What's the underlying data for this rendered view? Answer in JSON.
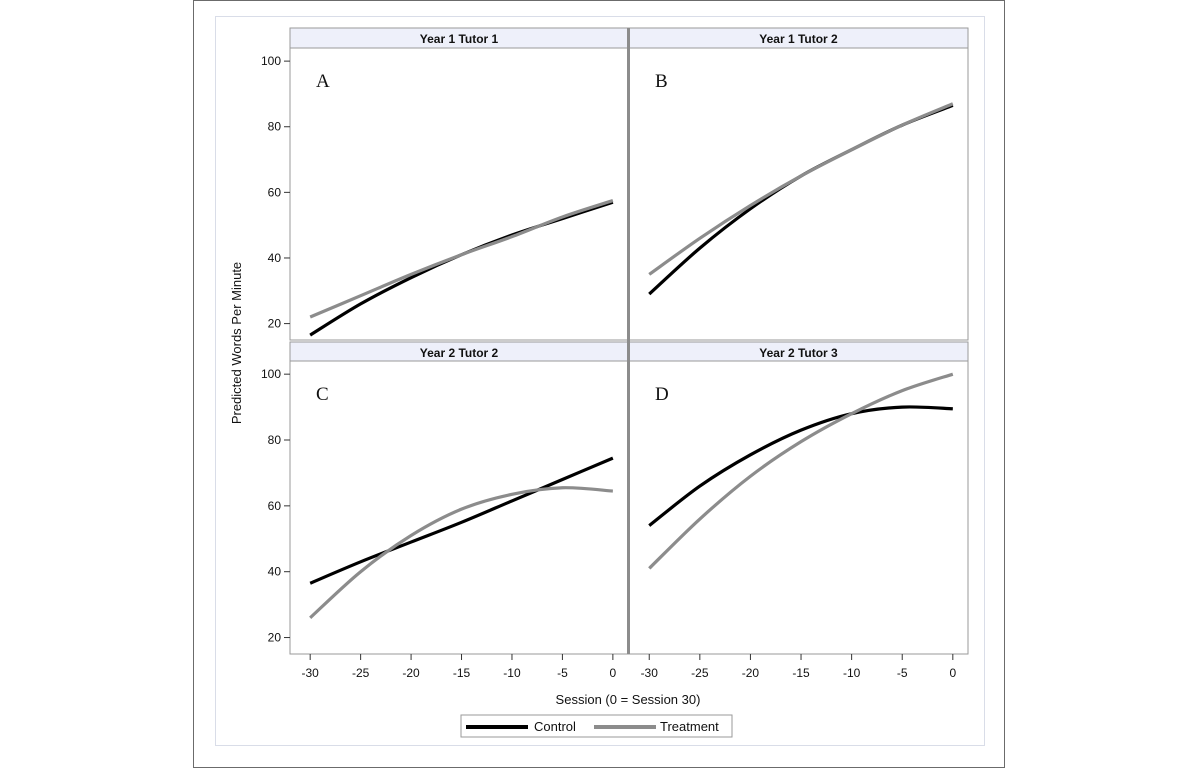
{
  "chart_data": {
    "type": "line",
    "xlabel": "Session (0 = Session 30)",
    "ylabel": "Predicted Words Per Minute",
    "xlim": [
      -32,
      1.5
    ],
    "xticks": [
      -30,
      -25,
      -20,
      -15,
      -10,
      -5,
      0
    ],
    "xtick_labels": [
      "-30",
      "-25",
      "-20",
      "-15",
      "-10",
      "-5",
      "0"
    ],
    "ylim": [
      15,
      104
    ],
    "yticks": [
      20,
      40,
      60,
      80,
      100
    ],
    "ytick_labels": [
      "20",
      "40",
      "60",
      "80",
      "100"
    ],
    "grid": false,
    "legend": {
      "placement": "bottom-center",
      "entries": [
        {
          "name": "Control",
          "color": "#000000"
        },
        {
          "name": "Treatment",
          "color": "#8c8c8c"
        }
      ]
    },
    "panels": [
      {
        "strip": "Year 1 Tutor 1",
        "letter": "A",
        "series": [
          {
            "name": "Control",
            "color": "#000000",
            "x": [
              -30,
              -25,
              -20,
              -15,
              -10,
              -5,
              0
            ],
            "y": [
              16.5,
              26,
              34,
              41,
              47,
              52,
              57
            ]
          },
          {
            "name": "Treatment",
            "color": "#8c8c8c",
            "x": [
              -30,
              -25,
              -20,
              -15,
              -10,
              -5,
              0
            ],
            "y": [
              22,
              28.5,
              35,
              41,
              46.5,
              52.5,
              57.5
            ]
          }
        ]
      },
      {
        "strip": "Year 1 Tutor 2",
        "letter": "B",
        "series": [
          {
            "name": "Control",
            "color": "#000000",
            "x": [
              -30,
              -25,
              -20,
              -15,
              -10,
              -5,
              0
            ],
            "y": [
              29,
              43,
              55,
              65,
              73,
              80.5,
              86.5
            ]
          },
          {
            "name": "Treatment",
            "color": "#8c8c8c",
            "x": [
              -30,
              -25,
              -20,
              -15,
              -10,
              -5,
              0
            ],
            "y": [
              35,
              46,
              56,
              65,
              73,
              80.5,
              87
            ]
          }
        ]
      },
      {
        "strip": "Year 2 Tutor 2",
        "letter": "C",
        "series": [
          {
            "name": "Control",
            "color": "#000000",
            "x": [
              -30,
              -25,
              -20,
              -15,
              -10,
              -5,
              0
            ],
            "y": [
              36.5,
              43,
              49,
              55,
              61.5,
              68,
              74.5
            ]
          },
          {
            "name": "Treatment",
            "color": "#8c8c8c",
            "x": [
              -30,
              -25,
              -20,
              -15,
              -10,
              -5,
              0
            ],
            "y": [
              26,
              40,
              51,
              59,
              63.5,
              65.5,
              64.5
            ]
          }
        ]
      },
      {
        "strip": "Year 2 Tutor 3",
        "letter": "D",
        "series": [
          {
            "name": "Control",
            "color": "#000000",
            "x": [
              -30,
              -25,
              -20,
              -15,
              -10,
              -5,
              0
            ],
            "y": [
              54,
              66,
              75.5,
              83,
              88,
              90,
              89.5
            ]
          },
          {
            "name": "Treatment",
            "color": "#8c8c8c",
            "x": [
              -30,
              -25,
              -20,
              -15,
              -10,
              -5,
              0
            ],
            "y": [
              41,
              56,
              69,
              79.5,
              88,
              95,
              100
            ]
          }
        ]
      }
    ]
  }
}
